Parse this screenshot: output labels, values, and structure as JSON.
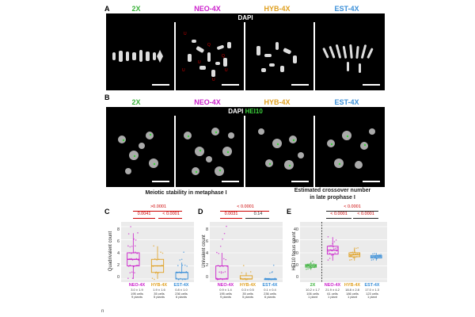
{
  "colors": {
    "2x": "#3cb33c",
    "neo": "#cc22cc",
    "hyb": "#e0a020",
    "est": "#3a8fd8",
    "red": "#cc0000"
  },
  "panelA": {
    "letter": "A",
    "genotypes": [
      "2X",
      "NEO-4X",
      "HYB-4X",
      "EST-4X"
    ],
    "stain": "DAPI",
    "annotations": [
      "U",
      "U",
      "U",
      "U",
      "U",
      "Q",
      "Q"
    ]
  },
  "panelB": {
    "letter": "B",
    "genotypes": [
      "2X",
      "NEO-4X",
      "HYB-4X",
      "EST-4X"
    ],
    "stain_dapi": "DAPI",
    "stain_hei10": "HEI10"
  },
  "section_titles": {
    "left": "Meiotic stability in metaphase I",
    "right_line1": "Estimated crossover number",
    "right_line2": "in late prophase I"
  },
  "panelC": {
    "letter": "C",
    "ylabel": "Quadrivalent count",
    "yticks": [
      "0",
      "2",
      "4",
      "6",
      "8"
    ],
    "pvalues": [
      ">0.0001",
      "0.0041",
      "< 0.0001"
    ],
    "groups": [
      {
        "name": "NEO-4X",
        "mean": "3.0 ± 1.9",
        "cells": "195 cells",
        "plants": "9 plants"
      },
      {
        "name": "HYB-4X",
        "mean": "1.9 ± 1.6",
        "cells": "35 cells",
        "plants": "5 plants"
      },
      {
        "name": "EST-4X",
        "mean": "0.8 ± 1.0",
        "cells": "236 cells",
        "plants": "6 plants"
      }
    ]
  },
  "panelD": {
    "letter": "D",
    "ylabel": "Univalent count",
    "yticks": [
      "0",
      "2",
      "4",
      "6",
      "8"
    ],
    "pvalues": [
      "< 0.0001",
      "0.0031",
      "0.14"
    ],
    "groups": [
      {
        "name": "NEO-4X",
        "mean": "0.9 ± 1.4",
        "cells": "195 cells",
        "plants": "9 plants"
      },
      {
        "name": "HYB-4X",
        "mean": "0.3 ± 0.5",
        "cells": "35 cells",
        "plants": "5 plants"
      },
      {
        "name": "EST-4X",
        "mean": "0.1 ± 0.4",
        "cells": "236 cells",
        "plants": "6 plants"
      }
    ]
  },
  "panelE": {
    "letter": "E",
    "ylabel": "HEI10 focus count",
    "yticks": [
      "0",
      "10",
      "20",
      "30",
      "40"
    ],
    "pvalues": [
      "< 0.0001",
      "< 0.0001",
      "< 0.0001"
    ],
    "groups": [
      {
        "name": "2X",
        "mean": "10.2 ± 1.7",
        "cells": "106 cells",
        "plants": "1 plant"
      },
      {
        "name": "NEO-4X",
        "mean": "21.9 ± 4.2",
        "cells": "61 cells",
        "plants": "1 plant"
      },
      {
        "name": "HYB-4X",
        "mean": "18.8 ± 2.8",
        "cells": "186 cells",
        "plants": "1 plant"
      },
      {
        "name": "EST-4X",
        "mean": "17.0 ± 1.3",
        "cells": "123 cells",
        "plants": "1 plant"
      }
    ]
  },
  "corner_mark": "n",
  "chart_data": [
    {
      "type": "box",
      "panel": "C",
      "ylabel": "Quadrivalent count",
      "ylim": [
        0,
        8
      ],
      "categories": [
        "NEO-4X",
        "HYB-4X",
        "EST-4X"
      ],
      "boxes": [
        {
          "q1": 2,
          "median": 3,
          "q3": 4,
          "min": 0,
          "max": 7
        },
        {
          "q1": 1,
          "median": 2,
          "q3": 3,
          "min": 0,
          "max": 5
        },
        {
          "q1": 0,
          "median": 1,
          "q3": 1,
          "min": 0,
          "max": 2.5
        }
      ],
      "points": [
        [
          0,
          1,
          1,
          2,
          2,
          2,
          2,
          3,
          3,
          3,
          3,
          3,
          3,
          4,
          4,
          4,
          4,
          5,
          5,
          5,
          6,
          6,
          7,
          7,
          8,
          0,
          1,
          2,
          3,
          4,
          3,
          2,
          5,
          4,
          3,
          2
        ],
        [
          0,
          0,
          1,
          1,
          2,
          2,
          2,
          3,
          3,
          3,
          4,
          4,
          5,
          1,
          2
        ],
        [
          0,
          0,
          0,
          0,
          0,
          1,
          1,
          1,
          1,
          1,
          2,
          2,
          2,
          3,
          3,
          4,
          0,
          1,
          0,
          1,
          2,
          0,
          1
        ]
      ]
    },
    {
      "type": "box",
      "panel": "D",
      "ylabel": "Univalent count",
      "ylim": [
        0,
        8
      ],
      "categories": [
        "NEO-4X",
        "HYB-4X",
        "EST-4X"
      ],
      "boxes": [
        {
          "q1": 0,
          "median": 0,
          "q3": 2,
          "min": 0,
          "max": 4
        },
        {
          "q1": 0,
          "median": 0,
          "q3": 0.5,
          "min": 0,
          "max": 1
        },
        {
          "q1": 0,
          "median": 0,
          "q3": 0,
          "min": 0,
          "max": 0
        }
      ],
      "points": [
        [
          0,
          0,
          0,
          0,
          0,
          0,
          0,
          1,
          1,
          1,
          1,
          2,
          2,
          2,
          2,
          3,
          3,
          4,
          4,
          5,
          6,
          7,
          8,
          0,
          0,
          1,
          2
        ],
        [
          0,
          0,
          0,
          0,
          0,
          1,
          1,
          2,
          0,
          0
        ],
        [
          0,
          0,
          0,
          0,
          0,
          0,
          0,
          0,
          1,
          1,
          2,
          0,
          0,
          0,
          0,
          1
        ]
      ]
    },
    {
      "type": "box",
      "panel": "E",
      "ylabel": "HEI10 focus count",
      "ylim": [
        0,
        45
      ],
      "categories": [
        "2X",
        "NEO-4X",
        "HYB-4X",
        "EST-4X"
      ],
      "boxes": [
        {
          "q1": 9,
          "median": 10,
          "q3": 11,
          "min": 7,
          "max": 13
        },
        {
          "q1": 19,
          "median": 22,
          "q3": 25,
          "min": 14,
          "max": 32
        },
        {
          "q1": 17,
          "median": 18.5,
          "q3": 20,
          "min": 14,
          "max": 24
        },
        {
          "q1": 16,
          "median": 17,
          "q3": 18,
          "min": 14,
          "max": 20
        }
      ],
      "points": [
        [
          7,
          8,
          8,
          9,
          9,
          9,
          10,
          10,
          10,
          10,
          11,
          11,
          11,
          12,
          12,
          13,
          9,
          10,
          11,
          10
        ],
        [
          14,
          16,
          18,
          19,
          20,
          21,
          21,
          22,
          22,
          23,
          23,
          24,
          25,
          26,
          27,
          28,
          30,
          32,
          20,
          22,
          24
        ],
        [
          14,
          15,
          16,
          17,
          17,
          18,
          18,
          18,
          19,
          19,
          19,
          20,
          20,
          21,
          22,
          23,
          24,
          17,
          18,
          19,
          20
        ],
        [
          14,
          15,
          16,
          16,
          17,
          17,
          17,
          17,
          18,
          18,
          18,
          19,
          19,
          20,
          16,
          17,
          18
        ]
      ]
    }
  ]
}
